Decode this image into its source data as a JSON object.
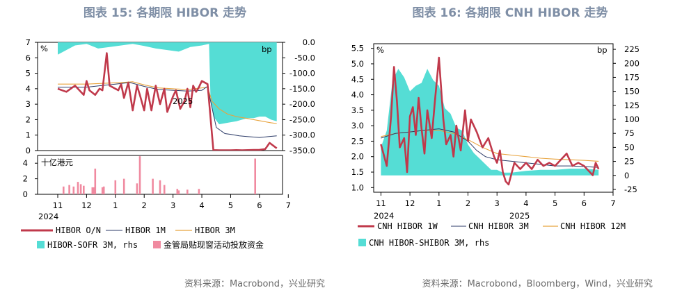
{
  "colors": {
    "red": "#c0394b",
    "navy": "#2b3a67",
    "gold": "#e8a33d",
    "teal": "#55ddd5",
    "pink": "#f08aa0",
    "title": "#7f8fa6"
  },
  "chart_data": [
    {
      "type": "line",
      "title": "图表 15: 各期限 HIBOR 走势",
      "source": "资料来源：Macrobond，兴业研究",
      "left_unit": "%",
      "right_unit": "bp",
      "sub_unit": "十亿港元",
      "x_months": [
        "11",
        "12",
        "1",
        "2",
        "3",
        "4",
        "5",
        "6",
        "7"
      ],
      "x_years": [
        "2024",
        "2025"
      ],
      "ylim_left": [
        0,
        7
      ],
      "ylim_right": [
        -350,
        0
      ],
      "right_ticks": [
        "0.0",
        "-50.0",
        "-100.0",
        "-150.0",
        "-200.0",
        "-250.0",
        "-300.0",
        "-350.0"
      ],
      "sub_ylim": [
        0,
        5
      ],
      "legend": [
        "HIBOR O/N",
        "HIBOR 1M",
        "HIBOR 3M",
        "HIBOR-SOFR 3M, rhs",
        "金管局贴现窗活动投放资金"
      ],
      "series": [
        {
          "name": "HIBOR O/N",
          "t": [
            0,
            0.3,
            0.6,
            0.9,
            1.0,
            1.1,
            1.3,
            1.45,
            1.55,
            1.7,
            1.8,
            2.0,
            2.1,
            2.2,
            2.3,
            2.45,
            2.6,
            2.75,
            2.85,
            3.0,
            3.1,
            3.25,
            3.4,
            3.55,
            3.7,
            3.8,
            4.0,
            4.1,
            4.25,
            4.4,
            4.5,
            4.6,
            4.7,
            4.8,
            4.9,
            5.0,
            5.2,
            5.4,
            5.6,
            5.8,
            6.0,
            6.2,
            6.4,
            6.6,
            6.8,
            7.0,
            7.2,
            7.35,
            7.6
          ],
          "v": [
            4.0,
            3.8,
            4.2,
            3.6,
            4.5,
            3.9,
            3.6,
            4.0,
            3.9,
            6.3,
            4.2,
            4.0,
            3.9,
            4.3,
            3.4,
            4.4,
            2.6,
            4.2,
            3.6,
            2.6,
            4.0,
            2.6,
            4.2,
            3.0,
            4.0,
            2.5,
            3.5,
            3.9,
            2.7,
            3.2,
            4.0,
            2.8,
            4.2,
            3.8,
            4.1,
            4.5,
            4.3,
            0.03,
            0.02,
            0.02,
            0.02,
            0.03,
            0.02,
            0.03,
            0.04,
            0.05,
            0.1,
            0.5,
            0.15
          ]
        },
        {
          "name": "HIBOR 1M",
          "t": [
            0,
            1.0,
            1.5,
            2.0,
            2.5,
            3.0,
            3.5,
            4.0,
            4.5,
            5.0,
            5.2,
            5.35,
            5.5,
            5.8,
            6.0,
            6.3,
            6.6,
            7.0,
            7.3,
            7.6
          ],
          "v": [
            4.1,
            4.1,
            4.2,
            4.3,
            4.4,
            4.15,
            3.95,
            3.9,
            3.85,
            3.9,
            4.15,
            2.8,
            1.5,
            1.1,
            1.05,
            0.95,
            0.9,
            0.85,
            0.9,
            0.95
          ]
        },
        {
          "name": "HIBOR 3M",
          "t": [
            0,
            1.0,
            1.6,
            2.2,
            2.6,
            3.0,
            3.5,
            4.0,
            4.5,
            5.0,
            5.2,
            5.35,
            5.6,
            5.9,
            6.2,
            6.5,
            6.8,
            7.1,
            7.4,
            7.6
          ],
          "v": [
            4.3,
            4.3,
            4.35,
            4.4,
            4.45,
            4.25,
            4.05,
            4.0,
            3.95,
            4.05,
            4.1,
            3.2,
            2.7,
            2.35,
            2.2,
            2.1,
            2.0,
            1.9,
            1.8,
            1.75
          ]
        },
        {
          "name": "HIBOR-SOFR 3M, rhs",
          "t": [
            0,
            0.3,
            0.6,
            1.0,
            1.4,
            1.8,
            2.2,
            2.6,
            3.0,
            3.4,
            3.8,
            4.2,
            4.6,
            5.0,
            5.25,
            5.3,
            5.4,
            5.6,
            5.9,
            6.2,
            6.4,
            6.6,
            6.8,
            7.0,
            7.2,
            7.4,
            7.6
          ],
          "v": [
            -40,
            -25,
            -10,
            -5,
            -20,
            -15,
            -10,
            -5,
            -12,
            -20,
            -25,
            -30,
            -15,
            -10,
            -5,
            -180,
            -240,
            -265,
            -260,
            -255,
            -250,
            -245,
            -245,
            -240,
            -240,
            -250,
            -255
          ]
        },
        {
          "name": "金管局贴现窗活动投放资金",
          "t": [
            0.2,
            0.4,
            0.55,
            0.7,
            0.8,
            0.9,
            1.3,
            1.55,
            1.6,
            2.0,
            2.3,
            2.75,
            2.85,
            3.3,
            3.55,
            3.7,
            4.15,
            4.2,
            4.5,
            4.9,
            6.85
          ],
          "v": [
            1.0,
            1.2,
            1.0,
            1.6,
            1.3,
            1.1,
            3.3,
            0.9,
            1.0,
            1.8,
            2.0,
            1.4,
            4.9,
            2.0,
            1.8,
            1.2,
            0.7,
            0.5,
            0.6,
            0.7,
            4.6
          ]
        }
      ]
    },
    {
      "type": "line",
      "title": "图表 16: 各期限 CNH HIBOR 走势",
      "source": "资料来源：Macrobond，Bloomberg，Wind，兴业研究",
      "left_unit": "%",
      "right_unit": "bp",
      "x_months": [
        "11",
        "12",
        "1",
        "2",
        "3",
        "4",
        "5",
        "6",
        "7"
      ],
      "x_years": [
        "2024",
        "2025"
      ],
      "left_ticks": [
        "1.0",
        "1.5",
        "2.0",
        "2.5",
        "3.0",
        "3.5",
        "4.0",
        "4.5",
        "5.0",
        "5.5"
      ],
      "ylim_left": [
        0.85,
        5.65
      ],
      "right_ticks": [
        "-25",
        "0",
        "25",
        "50",
        "75",
        "100",
        "125",
        "150",
        "175",
        "200",
        "225"
      ],
      "ylim_right": [
        -30,
        235
      ],
      "legend": [
        "CNH HIBOR 1W",
        "CNH HIBOR 3M",
        "CNH HIBOR 12M",
        "CNH HIBOR-SHIBOR 3M, rhs"
      ],
      "series": [
        {
          "name": "CNH HIBOR 1W",
          "t": [
            0,
            0.2,
            0.35,
            0.45,
            0.55,
            0.65,
            0.8,
            0.9,
            1.0,
            1.1,
            1.2,
            1.3,
            1.4,
            1.5,
            1.6,
            1.75,
            1.85,
            2.0,
            2.15,
            2.25,
            2.4,
            2.5,
            2.6,
            2.75,
            2.9,
            3.0,
            3.1,
            3.3,
            3.5,
            3.7,
            3.9,
            4.0,
            4.1,
            4.2,
            4.3,
            4.4,
            4.6,
            4.8,
            5.0,
            5.2,
            5.4,
            5.6,
            5.8,
            6.0,
            6.2,
            6.4,
            6.6,
            6.8,
            7.0,
            7.2,
            7.3,
            7.4,
            7.5
          ],
          "v": [
            2.4,
            1.7,
            3.3,
            4.9,
            3.8,
            2.3,
            2.6,
            1.5,
            3.3,
            3.6,
            2.7,
            3.9,
            2.9,
            2.1,
            3.5,
            2.6,
            3.7,
            5.2,
            3.2,
            2.4,
            2.7,
            2.0,
            3.0,
            2.2,
            3.5,
            2.5,
            3.2,
            2.8,
            2.3,
            2.6,
            2.0,
            1.8,
            2.2,
            1.5,
            1.2,
            1.1,
            1.8,
            1.6,
            1.8,
            1.6,
            1.9,
            1.7,
            1.8,
            1.7,
            1.9,
            2.1,
            1.7,
            1.8,
            1.7,
            1.5,
            1.4,
            1.8,
            1.6
          ]
        },
        {
          "name": "CNH HIBOR 3M",
          "t": [
            0,
            0.5,
            1.0,
            1.5,
            2.0,
            2.5,
            3.0,
            3.3,
            3.6,
            4.0,
            4.5,
            5.0,
            5.5,
            6.0,
            6.5,
            7.0,
            7.5
          ],
          "v": [
            2.6,
            2.75,
            2.8,
            2.85,
            2.9,
            2.8,
            2.5,
            2.2,
            2.0,
            1.9,
            1.85,
            1.8,
            1.75,
            1.7,
            1.7,
            1.68,
            1.65
          ]
        },
        {
          "name": "CNH HIBOR 12M",
          "t": [
            0,
            0.5,
            1.0,
            1.5,
            2.0,
            2.5,
            3.0,
            3.5,
            4.0,
            4.5,
            5.0,
            5.5,
            6.0,
            6.5,
            7.0,
            7.5
          ],
          "v": [
            2.65,
            2.75,
            2.8,
            2.85,
            2.85,
            2.75,
            2.55,
            2.3,
            2.1,
            2.05,
            2.0,
            1.95,
            1.92,
            1.9,
            1.88,
            1.85
          ]
        },
        {
          "name": "CNH HIBOR-SHIBOR 3M, rhs",
          "t": [
            0,
            0.2,
            0.4,
            0.6,
            0.8,
            1.0,
            1.2,
            1.4,
            1.6,
            1.8,
            2.0,
            2.2,
            2.4,
            2.6,
            2.8,
            3.0,
            3.2,
            3.4,
            3.6,
            3.8,
            4.0,
            4.2,
            4.5,
            5.0,
            5.5,
            6.0,
            6.5,
            7.0,
            7.5
          ],
          "v": [
            50,
            80,
            170,
            190,
            175,
            150,
            160,
            165,
            190,
            170,
            160,
            120,
            110,
            85,
            80,
            55,
            40,
            30,
            20,
            10,
            10,
            5,
            5,
            8,
            10,
            10,
            12,
            12,
            10
          ]
        }
      ]
    }
  ]
}
